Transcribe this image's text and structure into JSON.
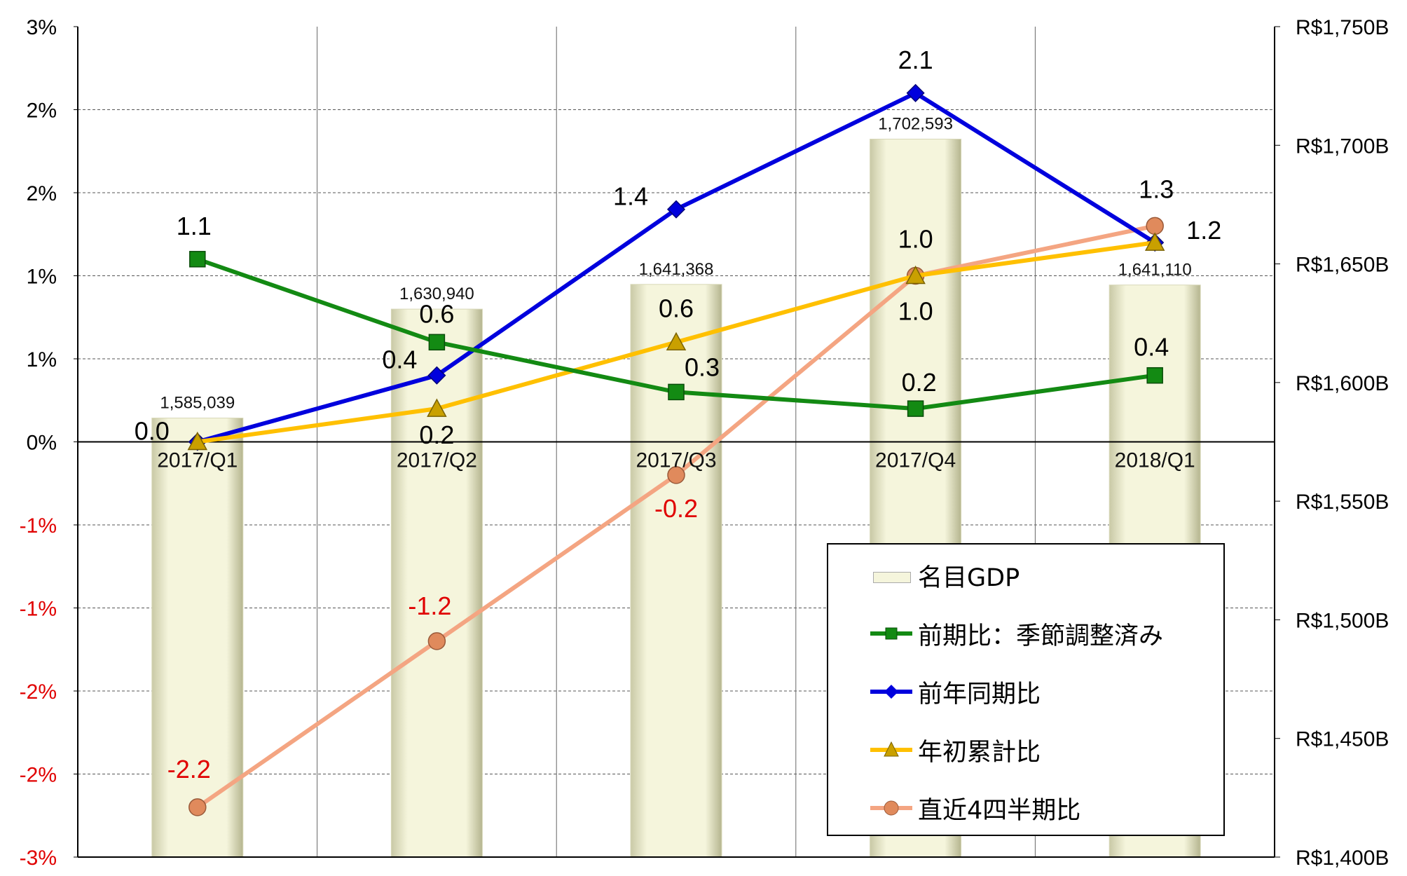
{
  "chart_data": {
    "type": "bar+line",
    "categories": [
      "2017/Q1",
      "2017/Q2",
      "2017/Q3",
      "2017/Q4",
      "2018/Q1"
    ],
    "left_axis": {
      "ylim": [
        -2.5,
        2.5
      ],
      "tick_labels": [
        "3%",
        "2%",
        "2%",
        "1%",
        "1%",
        "0%",
        "-1%",
        "-1%",
        "-2%",
        "-2%",
        "-3%"
      ],
      "negative_color": "#e00000"
    },
    "right_axis": {
      "ylim": [
        1400,
        1750
      ],
      "unit": "R$ billion",
      "tick_values": [
        1750,
        1700,
        1650,
        1600,
        1550,
        1500,
        1450,
        1400
      ],
      "tick_labels": [
        "R$1,750B",
        "R$1,700B",
        "R$1,650B",
        "R$1,600B",
        "R$1,550B",
        "R$1,500B",
        "R$1,450B",
        "R$1,400B"
      ]
    },
    "bars": {
      "name": "名目GDP",
      "values": [
        1585039,
        1630940,
        1641368,
        1702593,
        1641110
      ],
      "labels": [
        "1,585,039",
        "1,630,940",
        "1,641,368",
        "1,702,593",
        "1,641,110"
      ],
      "color": "#f5f5dc"
    },
    "series": [
      {
        "name": "前期比：季節調整済み",
        "values": [
          1.1,
          0.6,
          0.3,
          0.2,
          0.4
        ],
        "labels": [
          "1.1",
          "0.6",
          "0.3",
          "0.2",
          "0.4"
        ],
        "color": "#138a13",
        "marker": "square"
      },
      {
        "name": "前年同期比",
        "values": [
          0.0,
          0.4,
          1.4,
          2.1,
          1.2
        ],
        "labels": [
          "0.0",
          "0.4",
          "1.4",
          "2.1",
          "1.2"
        ],
        "color": "#0000dd",
        "marker": "diamond"
      },
      {
        "name": "年初累計比",
        "values": [
          0.0,
          0.2,
          0.6,
          1.0,
          1.2
        ],
        "labels": [
          "",
          "0.2",
          "0.6",
          "1.0",
          ""
        ],
        "color": "#ffc000",
        "marker": "triangle"
      },
      {
        "name": "直近4四半期比",
        "values": [
          -2.2,
          -1.2,
          -0.2,
          1.0,
          1.3
        ],
        "labels": [
          "-2.2",
          "-1.2",
          "-0.2",
          "1.0",
          "1.3"
        ],
        "color": "#f4a582",
        "marker": "circle"
      }
    ],
    "grid": true,
    "legend_position": "bottom-right"
  }
}
